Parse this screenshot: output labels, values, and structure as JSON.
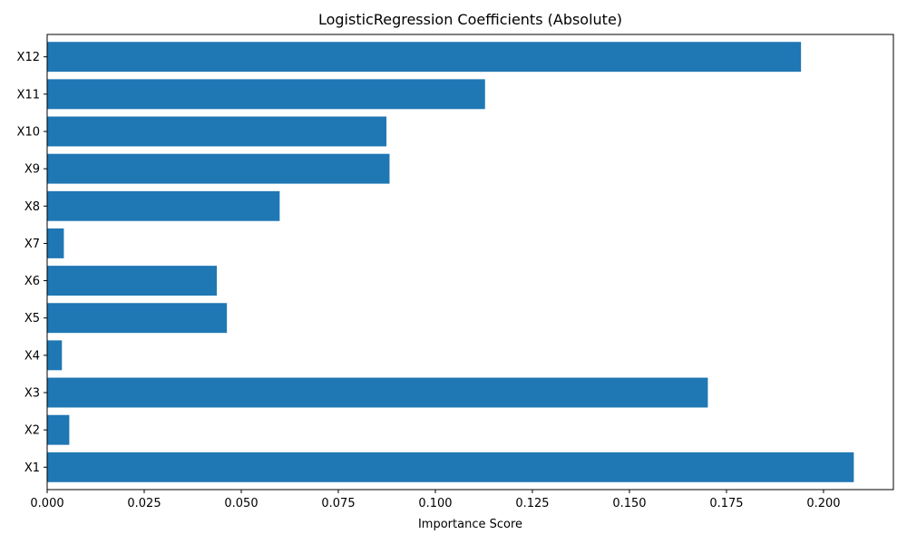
{
  "chart_data": {
    "type": "bar",
    "orientation": "horizontal",
    "title": "LogisticRegression Coefficients (Absolute)",
    "xlabel": "Importance Score",
    "ylabel": "",
    "categories": [
      "X1",
      "X2",
      "X3",
      "X4",
      "X5",
      "X6",
      "X7",
      "X8",
      "X9",
      "X10",
      "X11",
      "X12"
    ],
    "values": [
      0.2078,
      0.0057,
      0.1702,
      0.0038,
      0.0463,
      0.0437,
      0.0043,
      0.0599,
      0.0882,
      0.0874,
      0.1128,
      0.1942
    ],
    "xlim": [
      0,
      0.218
    ],
    "xticks": [
      "0.000",
      "0.025",
      "0.050",
      "0.075",
      "0.100",
      "0.125",
      "0.150",
      "0.175",
      "0.200"
    ],
    "bar_color": "#1f77b4",
    "grid": false
  }
}
